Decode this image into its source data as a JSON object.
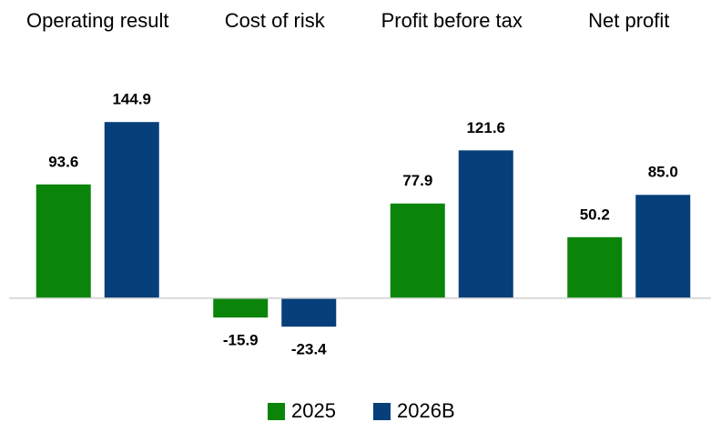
{
  "chart_data": {
    "type": "bar",
    "categories": [
      "Operating result",
      "Cost of risk",
      "Profit before tax",
      "Net profit"
    ],
    "series": [
      {
        "name": "2025",
        "color": "#0a850a",
        "values": [
          93.6,
          -15.9,
          77.9,
          50.2
        ],
        "value_labels": [
          "93.6",
          "-15.9",
          "77.9",
          "50.2"
        ]
      },
      {
        "name": "2026B",
        "color": "#063f7a",
        "values": [
          144.9,
          -23.4,
          121.6,
          85.0
        ],
        "value_labels": [
          "144.9",
          "-23.4",
          "121.6",
          "85.0"
        ]
      }
    ],
    "ylim": [
      -30,
      160
    ]
  }
}
